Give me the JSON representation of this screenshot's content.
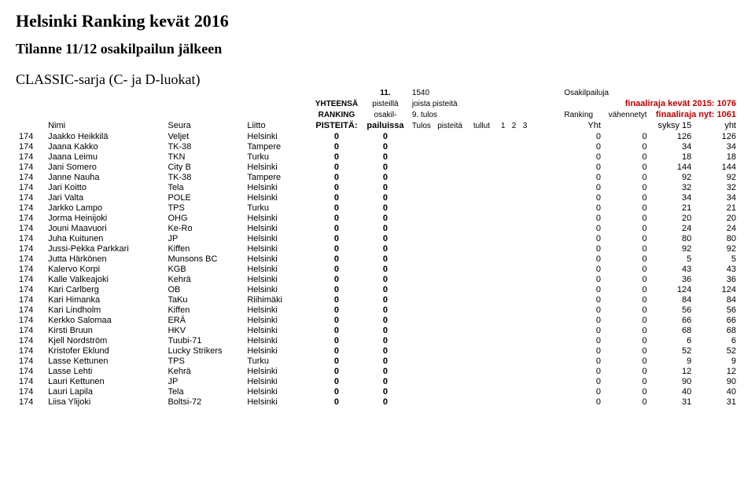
{
  "title": "Helsinki Ranking kevät 2016",
  "subtitle": "Tilanne 11/12 osakilpailun jälkeen",
  "series": "CLASSIC-sarja (C- ja D-luokat)",
  "topright": {
    "line1a": "11.",
    "line1b": "1540",
    "line1c": "Osakilpailuja",
    "line2a": "YHTEENSÄ",
    "line2b": "pisteillä",
    "line2c": "joista pisteitä",
    "line2f": "finaaliraja kevät 2015: 1076",
    "line3a": "RANKING",
    "line3b": "osakil-",
    "line3c": "9. tulos",
    "line3d": "Ranking",
    "line3e": "vähennetyt",
    "line3f": "finaaliraja nyt: 1061"
  },
  "columns": {
    "nimi": "Nimi",
    "seura": "Seura",
    "liitto": "Liitto",
    "pisteita": "PISTEITÄ:",
    "pailuissa": "pailuissa",
    "tulos": "Tulos",
    "pisteita2": "pisteitä",
    "tullut": "tullut",
    "c1": "1",
    "c2": "2",
    "c3": "3",
    "yht": "Yht",
    "syksy": "syksy 15",
    "yht2": "yht"
  },
  "rows": [
    {
      "r": 174,
      "name": "Jaakko Heikkilä",
      "team": "Veljet",
      "city": "Helsinki",
      "p": 0,
      "q": 0,
      "a": 0,
      "b": 0,
      "c": 126,
      "d": 126
    },
    {
      "r": 174,
      "name": "Jaana Kakko",
      "team": "TK-38",
      "city": "Tampere",
      "p": 0,
      "q": 0,
      "a": 0,
      "b": 0,
      "c": 34,
      "d": 34
    },
    {
      "r": 174,
      "name": "Jaana Leimu",
      "team": "TKN",
      "city": "Turku",
      "p": 0,
      "q": 0,
      "a": 0,
      "b": 0,
      "c": 18,
      "d": 18
    },
    {
      "r": 174,
      "name": "Jani Somero",
      "team": "City B",
      "city": "Helsinki",
      "p": 0,
      "q": 0,
      "a": 0,
      "b": 0,
      "c": 144,
      "d": 144
    },
    {
      "r": 174,
      "name": "Janne Nauha",
      "team": "TK-38",
      "city": "Tampere",
      "p": 0,
      "q": 0,
      "a": 0,
      "b": 0,
      "c": 92,
      "d": 92
    },
    {
      "r": 174,
      "name": "Jari Koitto",
      "team": "Tela",
      "city": "Helsinki",
      "p": 0,
      "q": 0,
      "a": 0,
      "b": 0,
      "c": 32,
      "d": 32
    },
    {
      "r": 174,
      "name": "Jari Valta",
      "team": "POLE",
      "city": "Helsinki",
      "p": 0,
      "q": 0,
      "a": 0,
      "b": 0,
      "c": 34,
      "d": 34
    },
    {
      "r": 174,
      "name": "Jarkko Lampo",
      "team": "TPS",
      "city": "Turku",
      "p": 0,
      "q": 0,
      "a": 0,
      "b": 0,
      "c": 21,
      "d": 21
    },
    {
      "r": 174,
      "name": "Jorma Heinijoki",
      "team": "OHG",
      "city": "Helsinki",
      "p": 0,
      "q": 0,
      "a": 0,
      "b": 0,
      "c": 20,
      "d": 20
    },
    {
      "r": 174,
      "name": "Jouni Maavuori",
      "team": "Ke-Ro",
      "city": "Helsinki",
      "p": 0,
      "q": 0,
      "a": 0,
      "b": 0,
      "c": 24,
      "d": 24
    },
    {
      "r": 174,
      "name": "Juha Kuitunen",
      "team": "JP",
      "city": "Helsinki",
      "p": 0,
      "q": 0,
      "a": 0,
      "b": 0,
      "c": 80,
      "d": 80
    },
    {
      "r": 174,
      "name": "Jussi-Pekka Parkkari",
      "team": "Kiffen",
      "city": "Helsinki",
      "p": 0,
      "q": 0,
      "a": 0,
      "b": 0,
      "c": 92,
      "d": 92
    },
    {
      "r": 174,
      "name": "Jutta Härkönen",
      "team": "Munsons BC",
      "city": "Helsinki",
      "p": 0,
      "q": 0,
      "a": 0,
      "b": 0,
      "c": 5,
      "d": 5
    },
    {
      "r": 174,
      "name": "Kalervo Korpi",
      "team": "KGB",
      "city": "Helsinki",
      "p": 0,
      "q": 0,
      "a": 0,
      "b": 0,
      "c": 43,
      "d": 43
    },
    {
      "r": 174,
      "name": "Kalle Valkeajoki",
      "team": "Kehrä",
      "city": "Helsinki",
      "p": 0,
      "q": 0,
      "a": 0,
      "b": 0,
      "c": 36,
      "d": 36
    },
    {
      "r": 174,
      "name": "Kari Carlberg",
      "team": "OB",
      "city": "Helsinki",
      "p": 0,
      "q": 0,
      "a": 0,
      "b": 0,
      "c": 124,
      "d": 124
    },
    {
      "r": 174,
      "name": "Kari Himanka",
      "team": "TaKu",
      "city": "Riihimäki",
      "p": 0,
      "q": 0,
      "a": 0,
      "b": 0,
      "c": 84,
      "d": 84
    },
    {
      "r": 174,
      "name": "Kari Lindholm",
      "team": "Kiffen",
      "city": "Helsinki",
      "p": 0,
      "q": 0,
      "a": 0,
      "b": 0,
      "c": 56,
      "d": 56
    },
    {
      "r": 174,
      "name": "Kerkko Salomaa",
      "team": "ERÄ",
      "city": "Helsinki",
      "p": 0,
      "q": 0,
      "a": 0,
      "b": 0,
      "c": 66,
      "d": 66
    },
    {
      "r": 174,
      "name": "Kirsti Bruun",
      "team": "HKV",
      "city": "Helsinki",
      "p": 0,
      "q": 0,
      "a": 0,
      "b": 0,
      "c": 68,
      "d": 68
    },
    {
      "r": 174,
      "name": "Kjell Nordström",
      "team": "Tuubi-71",
      "city": "Helsinki",
      "p": 0,
      "q": 0,
      "a": 0,
      "b": 0,
      "c": 6,
      "d": 6
    },
    {
      "r": 174,
      "name": "Kristofer Eklund",
      "team": "Lucky Strikers",
      "city": "Helsinki",
      "p": 0,
      "q": 0,
      "a": 0,
      "b": 0,
      "c": 52,
      "d": 52
    },
    {
      "r": 174,
      "name": "Lasse Kettunen",
      "team": "TPS",
      "city": "Turku",
      "p": 0,
      "q": 0,
      "a": 0,
      "b": 0,
      "c": 9,
      "d": 9
    },
    {
      "r": 174,
      "name": "Lasse Lehti",
      "team": "Kehrä",
      "city": "Helsinki",
      "p": 0,
      "q": 0,
      "a": 0,
      "b": 0,
      "c": 12,
      "d": 12
    },
    {
      "r": 174,
      "name": "Lauri Kettunen",
      "team": "JP",
      "city": "Helsinki",
      "p": 0,
      "q": 0,
      "a": 0,
      "b": 0,
      "c": 90,
      "d": 90
    },
    {
      "r": 174,
      "name": "Lauri Lapila",
      "team": "Tela",
      "city": "Helsinki",
      "p": 0,
      "q": 0,
      "a": 0,
      "b": 0,
      "c": 40,
      "d": 40
    },
    {
      "r": 174,
      "name": "Liisa Ylijoki",
      "team": "Boltsi-72",
      "city": "Helsinki",
      "p": 0,
      "q": 0,
      "a": 0,
      "b": 0,
      "c": 31,
      "d": 31
    }
  ]
}
